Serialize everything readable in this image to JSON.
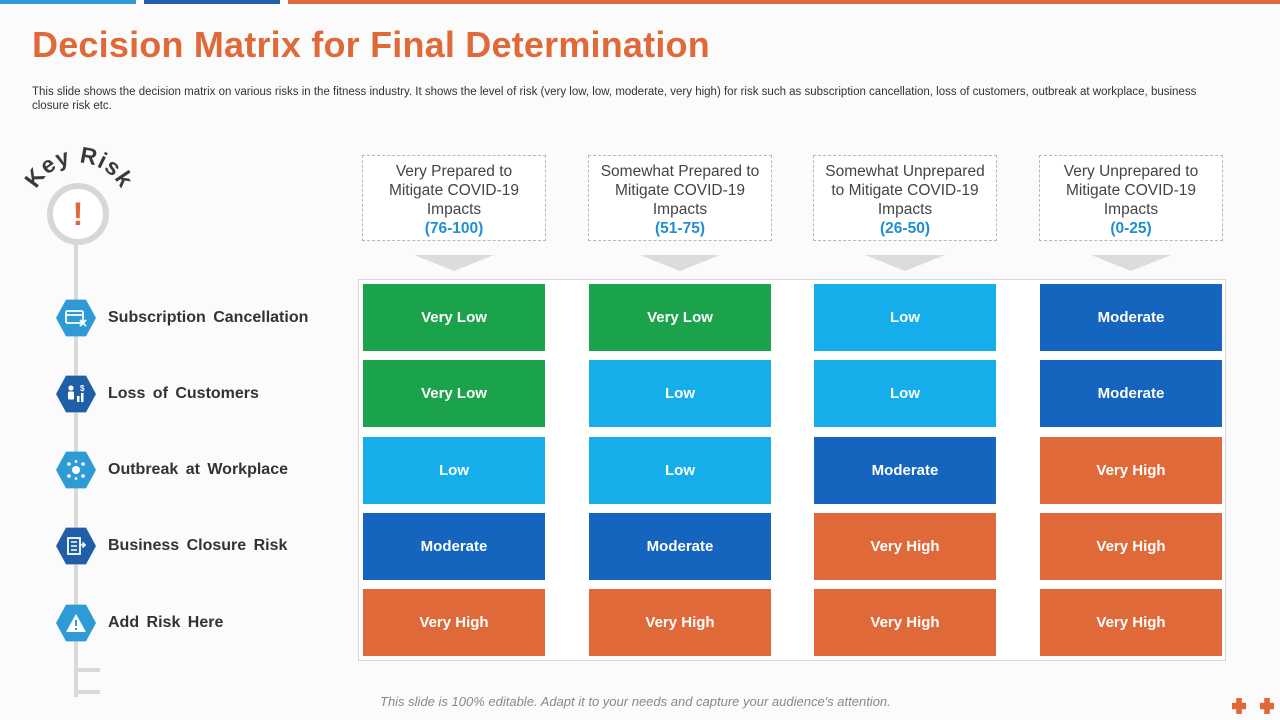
{
  "header": {
    "title": "Decision Matrix for Final Determination",
    "subtitle": "This slide shows the decision matrix on various risks in the fitness industry. It shows the level of risk (very low, low, moderate, very high) for risk such as subscription cancellation, loss of customers, outbreak at workplace, business closure risk etc."
  },
  "key_risk": {
    "label": "Key Risk",
    "alert_glyph": "!"
  },
  "columns": [
    {
      "text": "Very Prepared to Mitigate COVID-19 Impacts",
      "range": "(76-100)"
    },
    {
      "text": "Somewhat Prepared to Mitigate COVID-19 Impacts",
      "range": "(51-75)"
    },
    {
      "text": "Somewhat Unprepared to Mitigate COVID-19 Impacts",
      "range": "(26-50)"
    },
    {
      "text": "Very Unprepared to Mitigate COVID-19 Impacts",
      "range": "(0-25)"
    }
  ],
  "risks": [
    {
      "label": "Subscription Cancellation",
      "icon": "subscription-cancel-icon"
    },
    {
      "label": "Loss of Customers",
      "icon": "customers-loss-icon"
    },
    {
      "label": "Outbreak at Workplace",
      "icon": "virus-icon"
    },
    {
      "label": "Business Closure Risk",
      "icon": "business-closure-icon"
    },
    {
      "label": "Add Risk Here",
      "icon": "warning-icon"
    }
  ],
  "levels": {
    "Very Low": "#1aa34a",
    "Low": "#16aeea",
    "Moderate": "#1565be",
    "Very High": "#e0693a"
  },
  "matrix": [
    [
      "Very Low",
      "Very Low",
      "Low",
      "Moderate"
    ],
    [
      "Very Low",
      "Low",
      "Low",
      "Moderate"
    ],
    [
      "Low",
      "Low",
      "Moderate",
      "Very High"
    ],
    [
      "Moderate",
      "Moderate",
      "Very High",
      "Very High"
    ],
    [
      "Very High",
      "Very High",
      "Very High",
      "Very High"
    ]
  ],
  "footer": "This slide is 100% editable. Adapt it to your needs and capture your audience's attention.",
  "colors": {
    "accent": "#e0693a",
    "blue_dark": "#1565be",
    "blue_light": "#2e9bd6",
    "range_text": "#1f8fd0"
  }
}
